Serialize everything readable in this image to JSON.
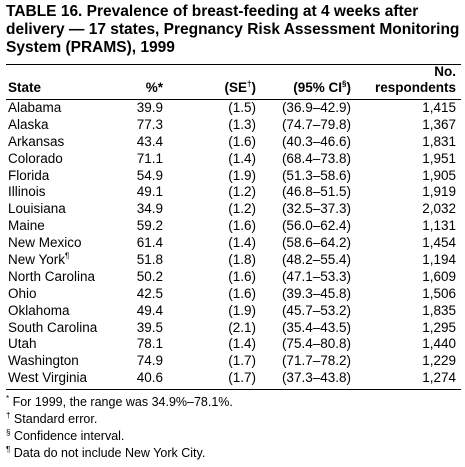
{
  "title": "TABLE 16. Prevalence of breast-feeding at 4 weeks after delivery — 17 states, Pregnancy Risk Assessment Monitoring System (PRAMS), 1999",
  "headers": {
    "state": "State",
    "pct": "%",
    "pct_mark": "*",
    "se": "(SE",
    "se_mark": "†",
    "se_close": ")",
    "ci": "(95% CI",
    "ci_mark": "§",
    "ci_close": ")",
    "no_line1": "No.",
    "no_line2": "respondents"
  },
  "rows": [
    {
      "state": "Alabama",
      "mark": "",
      "pct": "39.9",
      "se": "(1.5)",
      "ci": "(36.9–42.9)",
      "n": "1,415"
    },
    {
      "state": "Alaska",
      "mark": "",
      "pct": "77.3",
      "se": "(1.3)",
      "ci": "(74.7–79.8)",
      "n": "1,367"
    },
    {
      "state": "Arkansas",
      "mark": "",
      "pct": "43.4",
      "se": "(1.6)",
      "ci": "(40.3–46.6)",
      "n": "1,831"
    },
    {
      "state": "Colorado",
      "mark": "",
      "pct": "71.1",
      "se": "(1.4)",
      "ci": "(68.4–73.8)",
      "n": "1,951"
    },
    {
      "state": "Florida",
      "mark": "",
      "pct": "54.9",
      "se": "(1.9)",
      "ci": "(51.3–58.6)",
      "n": "1,905"
    },
    {
      "state": "Illinois",
      "mark": "",
      "pct": "49.1",
      "se": "(1.2)",
      "ci": "(46.8–51.5)",
      "n": "1,919"
    },
    {
      "state": "Louisiana",
      "mark": "",
      "pct": "34.9",
      "se": "(1.2)",
      "ci": "(32.5–37.3)",
      "n": "2,032"
    },
    {
      "state": "Maine",
      "mark": "",
      "pct": "59.2",
      "se": "(1.6)",
      "ci": "(56.0–62.4)",
      "n": "1,131"
    },
    {
      "state": "New Mexico",
      "mark": "",
      "pct": "61.4",
      "se": "(1.4)",
      "ci": "(58.6–64.2)",
      "n": "1,454"
    },
    {
      "state": "New York",
      "mark": "¶",
      "pct": "51.8",
      "se": "(1.8)",
      "ci": "(48.2–55.4)",
      "n": "1,194"
    },
    {
      "state": "North Carolina",
      "mark": "",
      "pct": "50.2",
      "se": "(1.6)",
      "ci": "(47.1–53.3)",
      "n": "1,609"
    },
    {
      "state": "Ohio",
      "mark": "",
      "pct": "42.5",
      "se": "(1.6)",
      "ci": "(39.3–45.8)",
      "n": "1,506"
    },
    {
      "state": "Oklahoma",
      "mark": "",
      "pct": "49.4",
      "se": "(1.9)",
      "ci": "(45.7–53.2)",
      "n": "1,835"
    },
    {
      "state": "South Carolina",
      "mark": "",
      "pct": "39.5",
      "se": "(2.1)",
      "ci": "(35.4–43.5)",
      "n": "1,295"
    },
    {
      "state": "Utah",
      "mark": "",
      "pct": "78.1",
      "se": "(1.4)",
      "ci": "(75.4–80.8)",
      "n": "1,440"
    },
    {
      "state": "Washington",
      "mark": "",
      "pct": "74.9",
      "ci": "(71.7–78.2)",
      "se": "(1.7)",
      "n": "1,229"
    },
    {
      "state": "West Virginia",
      "mark": "",
      "pct": "40.6",
      "se": "(1.7)",
      "ci": "(37.3–43.8)",
      "n": "1,274"
    }
  ],
  "footnotes": [
    {
      "mark": "*",
      "text": " For 1999, the range was 34.9%–78.1%."
    },
    {
      "mark": "†",
      "text": " Standard error."
    },
    {
      "mark": "§",
      "text": " Confidence interval."
    },
    {
      "mark": "¶",
      "text": " Data do not include New York City."
    }
  ]
}
